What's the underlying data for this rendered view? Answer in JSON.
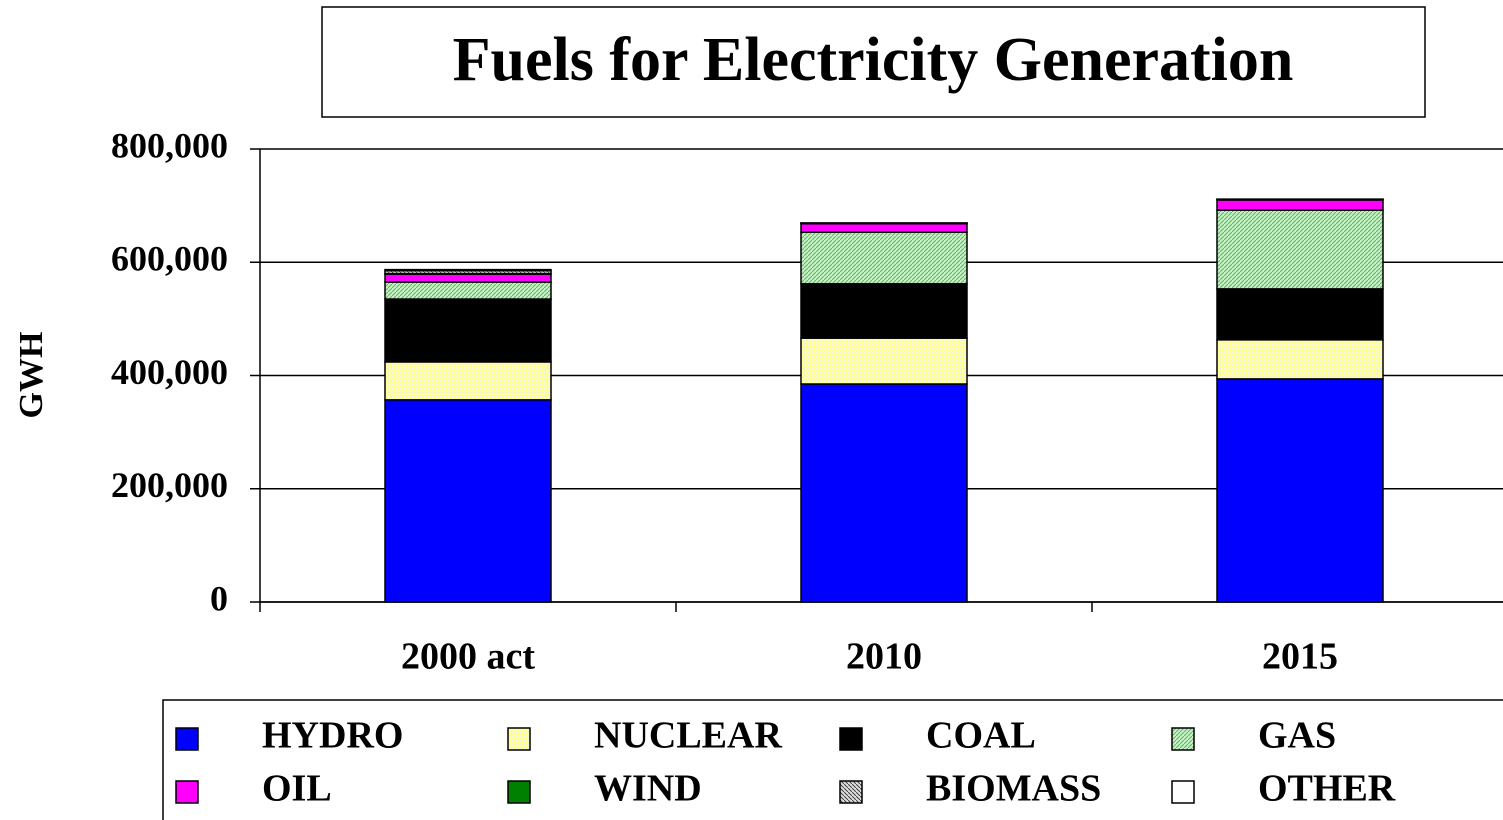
{
  "chart_data": {
    "type": "stacked_bar",
    "title": "Fuels for Electricity Generation",
    "y_label": "GWH",
    "categories": [
      "2000 act",
      "2010",
      "2015"
    ],
    "series": [
      {
        "name": "HYDRO",
        "color": "#0000ff",
        "values": [
          357000,
          385000,
          394000
        ]
      },
      {
        "name": "NUCLEAR",
        "color": "#ffff99",
        "values": [
          67000,
          81000,
          69000
        ]
      },
      {
        "name": "COAL",
        "color": "#000000",
        "values": [
          111000,
          96000,
          90000
        ]
      },
      {
        "name": "GAS",
        "color": "#99ee99",
        "values": [
          30000,
          91000,
          139000
        ]
      },
      {
        "name": "OIL",
        "color": "#ff00ff",
        "values": [
          14000,
          15000,
          18000
        ]
      },
      {
        "name": "WIND",
        "color": "#008000",
        "values": [
          1000,
          500,
          500
        ]
      },
      {
        "name": "BIOMASS",
        "color": "#999999",
        "values": [
          5000,
          500,
          500
        ]
      },
      {
        "name": "OTHER",
        "color": "#ffffff",
        "values": [
          2000,
          500,
          500
        ]
      }
    ],
    "ylim": [
      0,
      800000
    ],
    "yticks": [
      0,
      {
        "value": 200000,
        "label": "200,000"
      },
      {
        "value": 400000,
        "label": "400,000"
      },
      {
        "value": 600000,
        "label": "600,000"
      },
      {
        "value": 800000,
        "label": "800,000"
      }
    ],
    "grid": true,
    "legend": "bottom"
  }
}
